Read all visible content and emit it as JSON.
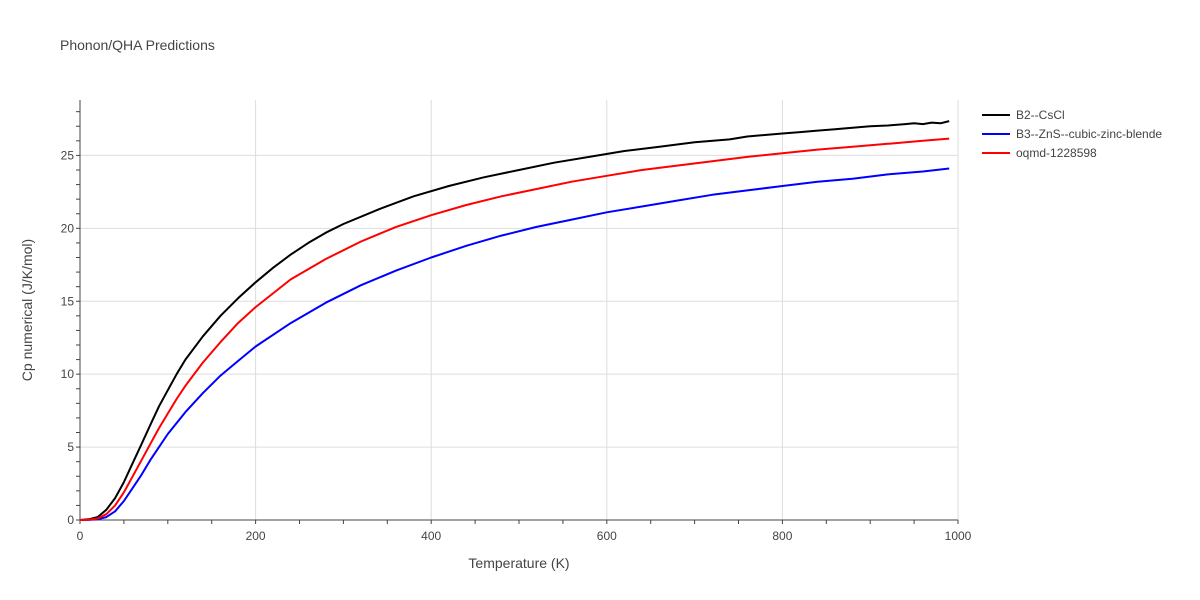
{
  "chart_data": {
    "type": "line",
    "title": "Phonon/QHA Predictions",
    "xlabel": "Temperature (K)",
    "ylabel": "Cp numerical (J/K/mol)",
    "xlim": [
      0,
      1000
    ],
    "ylim": [
      0,
      28.8
    ],
    "xticks": [
      0,
      200,
      400,
      600,
      800,
      1000
    ],
    "yticks": [
      0,
      5,
      10,
      15,
      20,
      25
    ],
    "grid": true,
    "legend_position": "top-right",
    "series": [
      {
        "name": "B2--CsCl",
        "color": "#000000",
        "x": [
          0,
          10,
          20,
          30,
          40,
          50,
          60,
          70,
          80,
          90,
          100,
          110,
          120,
          140,
          160,
          180,
          200,
          220,
          240,
          260,
          280,
          300,
          340,
          380,
          420,
          460,
          500,
          540,
          580,
          620,
          660,
          700,
          740,
          760,
          780,
          800,
          820,
          840,
          860,
          880,
          900,
          920,
          940,
          950,
          960,
          970,
          980,
          990
        ],
        "y": [
          0,
          0.05,
          0.2,
          0.7,
          1.5,
          2.6,
          3.9,
          5.2,
          6.5,
          7.8,
          8.9,
          10.0,
          11.0,
          12.6,
          14.0,
          15.2,
          16.3,
          17.3,
          18.2,
          19.0,
          19.7,
          20.3,
          21.3,
          22.2,
          22.9,
          23.5,
          24.0,
          24.5,
          24.9,
          25.3,
          25.6,
          25.9,
          26.1,
          26.3,
          26.4,
          26.5,
          26.6,
          26.7,
          26.8,
          26.9,
          27.0,
          27.05,
          27.15,
          27.2,
          27.15,
          27.25,
          27.2,
          27.35
        ]
      },
      {
        "name": "B3--ZnS--cubic-zinc-blende",
        "color": "#0000ff",
        "x": [
          0,
          10,
          20,
          30,
          40,
          50,
          60,
          70,
          80,
          90,
          100,
          120,
          140,
          160,
          180,
          200,
          240,
          280,
          320,
          360,
          400,
          440,
          480,
          520,
          560,
          600,
          640,
          680,
          720,
          760,
          800,
          840,
          880,
          920,
          960,
          990
        ],
        "y": [
          0,
          0.01,
          0.05,
          0.2,
          0.6,
          1.3,
          2.2,
          3.1,
          4.1,
          5.0,
          5.9,
          7.4,
          8.7,
          9.9,
          10.9,
          11.9,
          13.5,
          14.9,
          16.1,
          17.1,
          18.0,
          18.8,
          19.5,
          20.1,
          20.6,
          21.1,
          21.5,
          21.9,
          22.3,
          22.6,
          22.9,
          23.2,
          23.4,
          23.7,
          23.9,
          24.1
        ]
      },
      {
        "name": "oqmd-1228598",
        "color": "#ff0000",
        "x": [
          0,
          10,
          20,
          30,
          40,
          50,
          60,
          70,
          80,
          90,
          100,
          110,
          120,
          140,
          160,
          180,
          200,
          240,
          280,
          320,
          360,
          400,
          440,
          480,
          520,
          560,
          600,
          640,
          680,
          720,
          760,
          800,
          840,
          880,
          920,
          960,
          990
        ],
        "y": [
          0,
          0.02,
          0.1,
          0.4,
          1.0,
          1.9,
          3.0,
          4.1,
          5.2,
          6.3,
          7.3,
          8.3,
          9.2,
          10.8,
          12.2,
          13.5,
          14.6,
          16.5,
          17.9,
          19.1,
          20.1,
          20.9,
          21.6,
          22.2,
          22.7,
          23.2,
          23.6,
          24.0,
          24.3,
          24.6,
          24.9,
          25.15,
          25.4,
          25.6,
          25.8,
          26.0,
          26.15
        ]
      }
    ]
  }
}
